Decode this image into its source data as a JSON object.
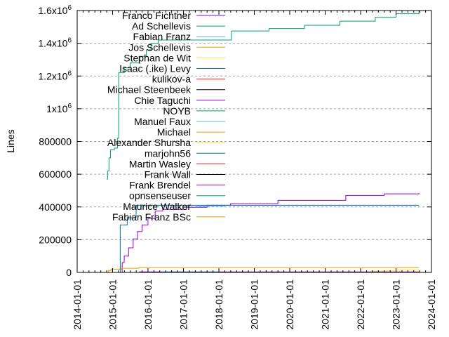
{
  "chart_data": {
    "type": "line",
    "title": "",
    "xlabel": "",
    "ylabel": "Lines",
    "xlim": [
      "2014-01-01",
      "2024-01-01"
    ],
    "ylim": [
      0,
      1600000
    ],
    "grid": {
      "y": true,
      "x": false
    },
    "legend_position": "top-left",
    "x_ticks": [
      "2014-01-01",
      "2015-01-01",
      "2016-01-01",
      "2017-01-01",
      "2018-01-01",
      "2019-01-01",
      "2020-01-01",
      "2021-01-01",
      "2022-01-01",
      "2023-01-01",
      "2024-01-01"
    ],
    "y_ticks": [
      {
        "value": 0,
        "label": "0"
      },
      {
        "value": 200000,
        "label": "200000"
      },
      {
        "value": 400000,
        "label": "400000"
      },
      {
        "value": 600000,
        "label": "600000"
      },
      {
        "value": 800000,
        "label": "800000"
      },
      {
        "value": 1000000,
        "label": "1x10",
        "exp": "6"
      },
      {
        "value": 1200000,
        "label": "1.2x10",
        "exp": "6"
      },
      {
        "value": 1400000,
        "label": "1.4x10",
        "exp": "6"
      },
      {
        "value": 1600000,
        "label": "1.6x10",
        "exp": "6"
      }
    ],
    "series": [
      {
        "name": "Franco Fichtner",
        "color": "#9400d3",
        "points": [
          [
            "2015-03-20",
            0
          ],
          [
            "2015-04-10",
            60000
          ],
          [
            "2015-05-01",
            100000
          ],
          [
            "2015-06-15",
            150000
          ],
          [
            "2015-08-01",
            205000
          ],
          [
            "2015-09-15",
            250000
          ],
          [
            "2015-11-01",
            290000
          ],
          [
            "2016-01-01",
            330000
          ],
          [
            "2016-03-15",
            375000
          ],
          [
            "2016-06-01",
            385000
          ],
          [
            "2017-02-01",
            398000
          ],
          [
            "2017-09-01",
            410000
          ],
          [
            "2018-05-01",
            420000
          ],
          [
            "2019-09-01",
            440000
          ],
          [
            "2021-08-01",
            470000
          ],
          [
            "2022-09-01",
            480000
          ],
          [
            "2023-08-25",
            485000
          ]
        ]
      },
      {
        "name": "Ad Schellevis",
        "color": "#009e73",
        "points": [
          [
            "2014-11-01",
            570000
          ],
          [
            "2014-11-10",
            620000
          ],
          [
            "2014-11-25",
            700000
          ],
          [
            "2014-12-10",
            750000
          ],
          [
            "2015-01-20",
            760000
          ],
          [
            "2015-02-20",
            820000
          ],
          [
            "2015-03-05",
            1220000
          ],
          [
            "2015-05-01",
            1250000
          ],
          [
            "2015-07-01",
            1280000
          ],
          [
            "2015-10-01",
            1320000
          ],
          [
            "2015-12-15",
            1360000
          ],
          [
            "2016-02-01",
            1400000
          ],
          [
            "2016-04-15",
            1420000
          ],
          [
            "2018-05-10",
            1475000
          ],
          [
            "2019-06-01",
            1490000
          ],
          [
            "2020-06-01",
            1510000
          ],
          [
            "2021-06-01",
            1535000
          ],
          [
            "2022-06-01",
            1560000
          ],
          [
            "2023-01-01",
            1580000
          ],
          [
            "2023-08-25",
            1600000
          ]
        ]
      },
      {
        "name": "Fabian Franz",
        "color": "#56b4e9",
        "points": [
          [
            "2016-10-01",
            0
          ],
          [
            "2023-08-25",
            1000
          ]
        ]
      },
      {
        "name": "Jos Schellevis",
        "color": "#e69f00",
        "points": [
          [
            "2014-11-10",
            0
          ],
          [
            "2014-11-20",
            12000
          ],
          [
            "2014-12-15",
            20000
          ],
          [
            "2015-04-01",
            25000
          ],
          [
            "2015-10-01",
            30000
          ],
          [
            "2023-08-25",
            30000
          ]
        ]
      },
      {
        "name": "Stephan de Wit",
        "color": "#f0e442",
        "points": [
          [
            "2022-04-01",
            0
          ],
          [
            "2022-04-15",
            8000
          ],
          [
            "2022-10-01",
            12000
          ],
          [
            "2023-01-15",
            16000
          ],
          [
            "2023-08-25",
            16000
          ]
        ]
      },
      {
        "name": "Isaac (.ike) Levy",
        "color": "#0072b2",
        "points": [
          [
            "2015-03-20",
            0
          ],
          [
            "2015-03-21",
            290000
          ],
          [
            "2015-06-01",
            335000
          ],
          [
            "2015-09-01",
            410000
          ],
          [
            "2023-08-25",
            410000
          ]
        ]
      },
      {
        "name": "kulikov-a",
        "color": "#e51e10",
        "points": []
      },
      {
        "name": "Michael Steenbeek",
        "color": "#000000",
        "points": []
      },
      {
        "name": "Chie Taguchi",
        "color": "#9400d3",
        "points": [
          [
            "2015-10-01",
            3000
          ],
          [
            "2023-08-25",
            4000
          ]
        ]
      },
      {
        "name": "NOYB",
        "color": "#009e73",
        "points": [
          [
            "2018-01-01",
            1000
          ],
          [
            "2023-08-25",
            1000
          ]
        ]
      },
      {
        "name": "Manuel Faux",
        "color": "#56b4e9",
        "points": []
      },
      {
        "name": "Michael",
        "color": "#e69f00",
        "points": []
      },
      {
        "name": "Alexander Shursha",
        "color": "#f0e442",
        "points": []
      },
      {
        "name": "marjohn56",
        "color": "#0072b2",
        "points": [
          [
            "2016-05-01",
            2000
          ],
          [
            "2018-01-01",
            2000
          ]
        ]
      },
      {
        "name": "Martin Wasley",
        "color": "#e51e10",
        "points": []
      },
      {
        "name": "Frank Wall",
        "color": "#000000",
        "points": []
      },
      {
        "name": "Frank Brendel",
        "color": "#9400d3",
        "points": [
          [
            "2018-06-01",
            1500
          ],
          [
            "2023-08-25",
            2000
          ]
        ]
      },
      {
        "name": "opnsenseuser",
        "color": "#009e73",
        "points": []
      },
      {
        "name": "Maurice Walker",
        "color": "#56b4e9",
        "points": []
      },
      {
        "name": "Fabian Franz BSc",
        "color": "#e69f00",
        "points": [
          [
            "2018-06-01",
            500
          ],
          [
            "2023-08-25",
            800
          ]
        ]
      }
    ]
  }
}
